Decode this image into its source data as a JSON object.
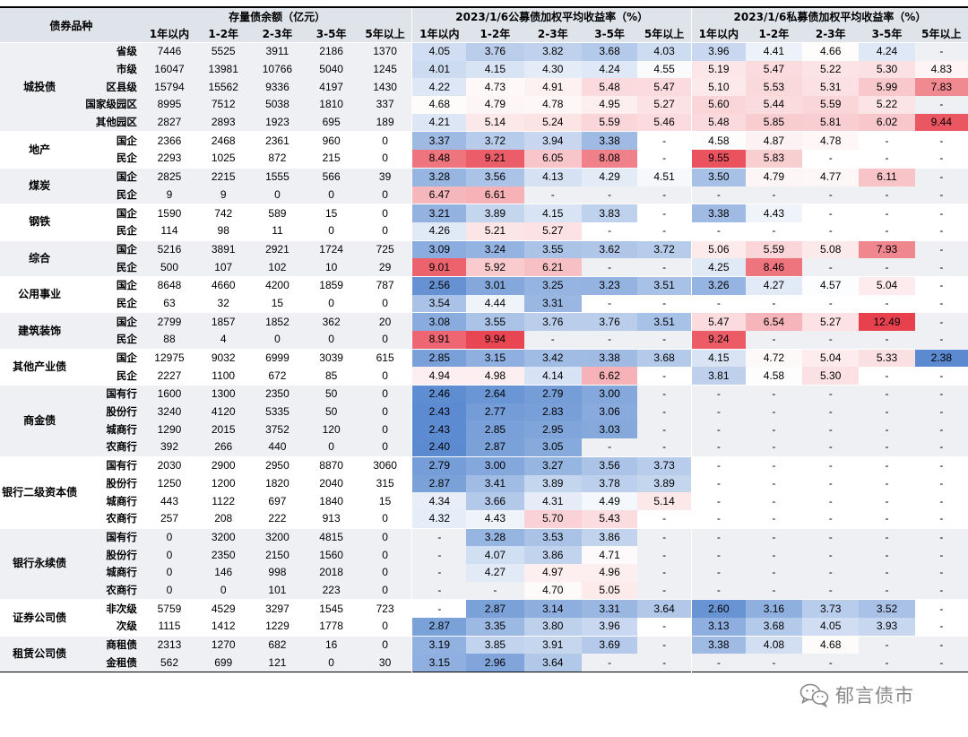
{
  "header": {
    "category_label": "债券品种",
    "balance_group": "存量债余额（亿元）",
    "public_group": "2023/1/6公募债加权平均收益率（%）",
    "private_group": "2023/1/6私募债加权平均收益率（%）",
    "terms": [
      "1年以内",
      "1-2年",
      "2-3年",
      "3-5年",
      "5年以上"
    ]
  },
  "groups": [
    {
      "name": "城投债",
      "band": "#eef0f4",
      "rows": [
        {
          "sub": "省级",
          "vals": [
            "7446",
            "5525",
            "3911",
            "2186",
            "1370",
            "4.05",
            "3.76",
            "3.82",
            "3.68",
            "4.03",
            "3.96",
            "4.41",
            "4.66",
            "4.24",
            "-"
          ]
        },
        {
          "sub": "市级",
          "vals": [
            "16047",
            "13981",
            "10766",
            "5040",
            "1245",
            "4.01",
            "4.15",
            "4.30",
            "4.24",
            "4.55",
            "5.19",
            "5.47",
            "5.22",
            "5.30",
            "4.83"
          ]
        },
        {
          "sub": "区县级",
          "vals": [
            "15794",
            "15562",
            "9336",
            "4197",
            "1430",
            "4.22",
            "4.73",
            "4.91",
            "5.48",
            "5.47",
            "5.10",
            "5.53",
            "5.31",
            "5.99",
            "7.83"
          ]
        },
        {
          "sub": "国家级园区",
          "vals": [
            "8995",
            "7512",
            "5038",
            "1810",
            "337",
            "4.68",
            "4.79",
            "4.78",
            "4.95",
            "5.27",
            "5.60",
            "5.44",
            "5.59",
            "5.22",
            "-"
          ]
        },
        {
          "sub": "其他园区",
          "vals": [
            "2827",
            "2893",
            "1923",
            "695",
            "189",
            "4.21",
            "5.14",
            "5.24",
            "5.59",
            "5.46",
            "5.48",
            "5.85",
            "5.81",
            "6.02",
            "9.44"
          ]
        }
      ]
    },
    {
      "name": "地产",
      "band": "#ffffff",
      "rows": [
        {
          "sub": "国企",
          "vals": [
            "2366",
            "2468",
            "2361",
            "960",
            "0",
            "3.37",
            "3.72",
            "3.94",
            "3.38",
            "-",
            "4.58",
            "4.87",
            "4.78",
            "-",
            "-"
          ]
        },
        {
          "sub": "民企",
          "vals": [
            "2293",
            "1025",
            "872",
            "215",
            "0",
            "8.48",
            "9.21",
            "6.05",
            "8.08",
            "-",
            "9.55",
            "5.83",
            "-",
            "-",
            "-"
          ]
        }
      ]
    },
    {
      "name": "煤炭",
      "band": "#eef0f4",
      "rows": [
        {
          "sub": "国企",
          "vals": [
            "2825",
            "2215",
            "1555",
            "566",
            "39",
            "3.28",
            "3.56",
            "4.13",
            "4.29",
            "4.51",
            "3.50",
            "4.79",
            "4.77",
            "6.11",
            "-"
          ]
        },
        {
          "sub": "民企",
          "vals": [
            "9",
            "9",
            "0",
            "0",
            "0",
            "6.47",
            "6.61",
            "-",
            "-",
            "-",
            "-",
            "-",
            "-",
            "-",
            "-"
          ]
        }
      ]
    },
    {
      "name": "钢铁",
      "band": "#ffffff",
      "rows": [
        {
          "sub": "国企",
          "vals": [
            "1590",
            "742",
            "589",
            "15",
            "0",
            "3.21",
            "3.89",
            "4.15",
            "3.83",
            "-",
            "3.38",
            "4.43",
            "-",
            "-",
            "-"
          ]
        },
        {
          "sub": "民企",
          "vals": [
            "114",
            "98",
            "11",
            "0",
            "0",
            "4.26",
            "5.21",
            "5.27",
            "-",
            "-",
            "-",
            "-",
            "-",
            "-",
            "-"
          ]
        }
      ]
    },
    {
      "name": "综合",
      "band": "#eef0f4",
      "rows": [
        {
          "sub": "国企",
          "vals": [
            "5216",
            "3891",
            "2921",
            "1724",
            "725",
            "3.09",
            "3.24",
            "3.55",
            "3.62",
            "3.72",
            "5.06",
            "5.59",
            "5.08",
            "7.93",
            "-"
          ]
        },
        {
          "sub": "民企",
          "vals": [
            "500",
            "107",
            "102",
            "10",
            "29",
            "9.01",
            "5.92",
            "6.21",
            "-",
            "-",
            "4.25",
            "8.46",
            "-",
            "-",
            "-"
          ]
        }
      ]
    },
    {
      "name": "公用事业",
      "band": "#ffffff",
      "rows": [
        {
          "sub": "国企",
          "vals": [
            "8648",
            "4660",
            "4200",
            "1859",
            "787",
            "2.56",
            "3.01",
            "3.25",
            "3.23",
            "3.51",
            "3.26",
            "4.27",
            "4.57",
            "5.04",
            "-"
          ]
        },
        {
          "sub": "民企",
          "vals": [
            "63",
            "32",
            "15",
            "0",
            "0",
            "3.54",
            "4.44",
            "3.31",
            "-",
            "-",
            "-",
            "-",
            "-",
            "-",
            "-"
          ]
        }
      ]
    },
    {
      "name": "建筑装饰",
      "band": "#eef0f4",
      "rows": [
        {
          "sub": "国企",
          "vals": [
            "2799",
            "1857",
            "1852",
            "362",
            "20",
            "3.08",
            "3.55",
            "3.76",
            "3.76",
            "3.51",
            "5.47",
            "6.54",
            "5.27",
            "12.49",
            "-"
          ]
        },
        {
          "sub": "民企",
          "vals": [
            "88",
            "4",
            "0",
            "0",
            "0",
            "8.91",
            "9.94",
            "-",
            "-",
            "-",
            "9.24",
            "-",
            "-",
            "-",
            "-"
          ]
        }
      ]
    },
    {
      "name": "其他产业债",
      "band": "#ffffff",
      "rows": [
        {
          "sub": "国企",
          "vals": [
            "12975",
            "9032",
            "6999",
            "3039",
            "615",
            "2.85",
            "3.15",
            "3.42",
            "3.38",
            "3.68",
            "4.15",
            "4.72",
            "5.04",
            "5.33",
            "2.38"
          ]
        },
        {
          "sub": "民企",
          "vals": [
            "2227",
            "1100",
            "672",
            "85",
            "0",
            "4.94",
            "4.98",
            "4.14",
            "6.62",
            "-",
            "3.81",
            "4.58",
            "5.30",
            "-",
            "-"
          ]
        }
      ]
    },
    {
      "name": "商金债",
      "band": "#eef0f4",
      "rows": [
        {
          "sub": "国有行",
          "vals": [
            "1600",
            "1300",
            "2350",
            "50",
            "0",
            "2.46",
            "2.64",
            "2.79",
            "3.00",
            "-",
            "-",
            "-",
            "-",
            "-",
            "-"
          ]
        },
        {
          "sub": "股份行",
          "vals": [
            "3240",
            "4120",
            "5335",
            "50",
            "0",
            "2.43",
            "2.77",
            "2.83",
            "3.06",
            "-",
            "-",
            "-",
            "-",
            "-",
            "-"
          ]
        },
        {
          "sub": "城商行",
          "vals": [
            "1290",
            "2015",
            "3752",
            "120",
            "0",
            "2.43",
            "2.85",
            "2.95",
            "3.03",
            "-",
            "-",
            "-",
            "-",
            "-",
            "-"
          ]
        },
        {
          "sub": "农商行",
          "vals": [
            "392",
            "266",
            "440",
            "0",
            "0",
            "2.40",
            "2.87",
            "3.05",
            "-",
            "-",
            "-",
            "-",
            "-",
            "-",
            "-"
          ]
        }
      ]
    },
    {
      "name": "银行二级资本债",
      "band": "#ffffff",
      "rows": [
        {
          "sub": "国有行",
          "vals": [
            "2030",
            "2900",
            "2950",
            "8870",
            "3060",
            "2.79",
            "3.00",
            "3.27",
            "3.56",
            "3.73",
            "-",
            "-",
            "-",
            "-",
            "-"
          ]
        },
        {
          "sub": "股份行",
          "vals": [
            "1250",
            "1200",
            "1820",
            "2040",
            "315",
            "2.87",
            "3.41",
            "3.89",
            "3.78",
            "3.89",
            "-",
            "-",
            "-",
            "-",
            "-"
          ]
        },
        {
          "sub": "城商行",
          "vals": [
            "443",
            "1122",
            "697",
            "1840",
            "15",
            "4.34",
            "3.66",
            "4.31",
            "4.49",
            "5.14",
            "-",
            "-",
            "-",
            "-",
            "-"
          ]
        },
        {
          "sub": "农商行",
          "vals": [
            "257",
            "208",
            "222",
            "913",
            "0",
            "4.32",
            "4.43",
            "5.70",
            "5.43",
            "-",
            "-",
            "-",
            "-",
            "-",
            "-"
          ]
        }
      ]
    },
    {
      "name": "银行永续债",
      "band": "#eef0f4",
      "rows": [
        {
          "sub": "国有行",
          "vals": [
            "0",
            "3200",
            "3200",
            "4815",
            "0",
            "-",
            "3.28",
            "3.53",
            "3.86",
            "-",
            "-",
            "-",
            "-",
            "-",
            "-"
          ]
        },
        {
          "sub": "股份行",
          "vals": [
            "0",
            "2350",
            "2150",
            "1560",
            "0",
            "-",
            "4.07",
            "3.86",
            "4.71",
            "-",
            "-",
            "-",
            "-",
            "-",
            "-"
          ]
        },
        {
          "sub": "城商行",
          "vals": [
            "0",
            "146",
            "998",
            "2018",
            "0",
            "-",
            "4.27",
            "4.97",
            "4.96",
            "-",
            "-",
            "-",
            "-",
            "-",
            "-"
          ]
        },
        {
          "sub": "农商行",
          "vals": [
            "0",
            "0",
            "101",
            "223",
            "0",
            "-",
            "-",
            "4.70",
            "5.05",
            "-",
            "-",
            "-",
            "-",
            "-",
            "-"
          ]
        }
      ]
    },
    {
      "name": "证券公司债",
      "band": "#ffffff",
      "rows": [
        {
          "sub": "非次级",
          "vals": [
            "5759",
            "4529",
            "3297",
            "1545",
            "723",
            "-",
            "2.87",
            "3.14",
            "3.31",
            "3.64",
            "2.60",
            "3.16",
            "3.73",
            "3.52",
            "-"
          ]
        },
        {
          "sub": "次级",
          "vals": [
            "1115",
            "1412",
            "1229",
            "1778",
            "0",
            "2.87",
            "3.35",
            "3.80",
            "3.96",
            "-",
            "3.13",
            "3.68",
            "4.05",
            "3.93",
            "-"
          ]
        }
      ]
    },
    {
      "name": "租赁公司债",
      "band": "#eef0f4",
      "rows": [
        {
          "sub": "商租债",
          "vals": [
            "2313",
            "1270",
            "682",
            "16",
            "0",
            "3.19",
            "3.85",
            "3.91",
            "3.69",
            "-",
            "3.38",
            "4.08",
            "4.68",
            "-",
            "-"
          ]
        },
        {
          "sub": "金租债",
          "vals": [
            "562",
            "699",
            "121",
            "0",
            "30",
            "3.15",
            "2.96",
            "3.64",
            "-",
            "-",
            "-",
            "-",
            "-",
            "-",
            "-"
          ]
        }
      ]
    }
  ],
  "watermark": {
    "text": "郁言债市",
    "icon": "wechat-icon"
  },
  "colors": {
    "low": "#5b8ad0",
    "mid": "#ffffff",
    "high": "#e8414e",
    "band_a": "#eef0f4",
    "band_b": "#ffffff",
    "header": "#dfe3ea"
  }
}
